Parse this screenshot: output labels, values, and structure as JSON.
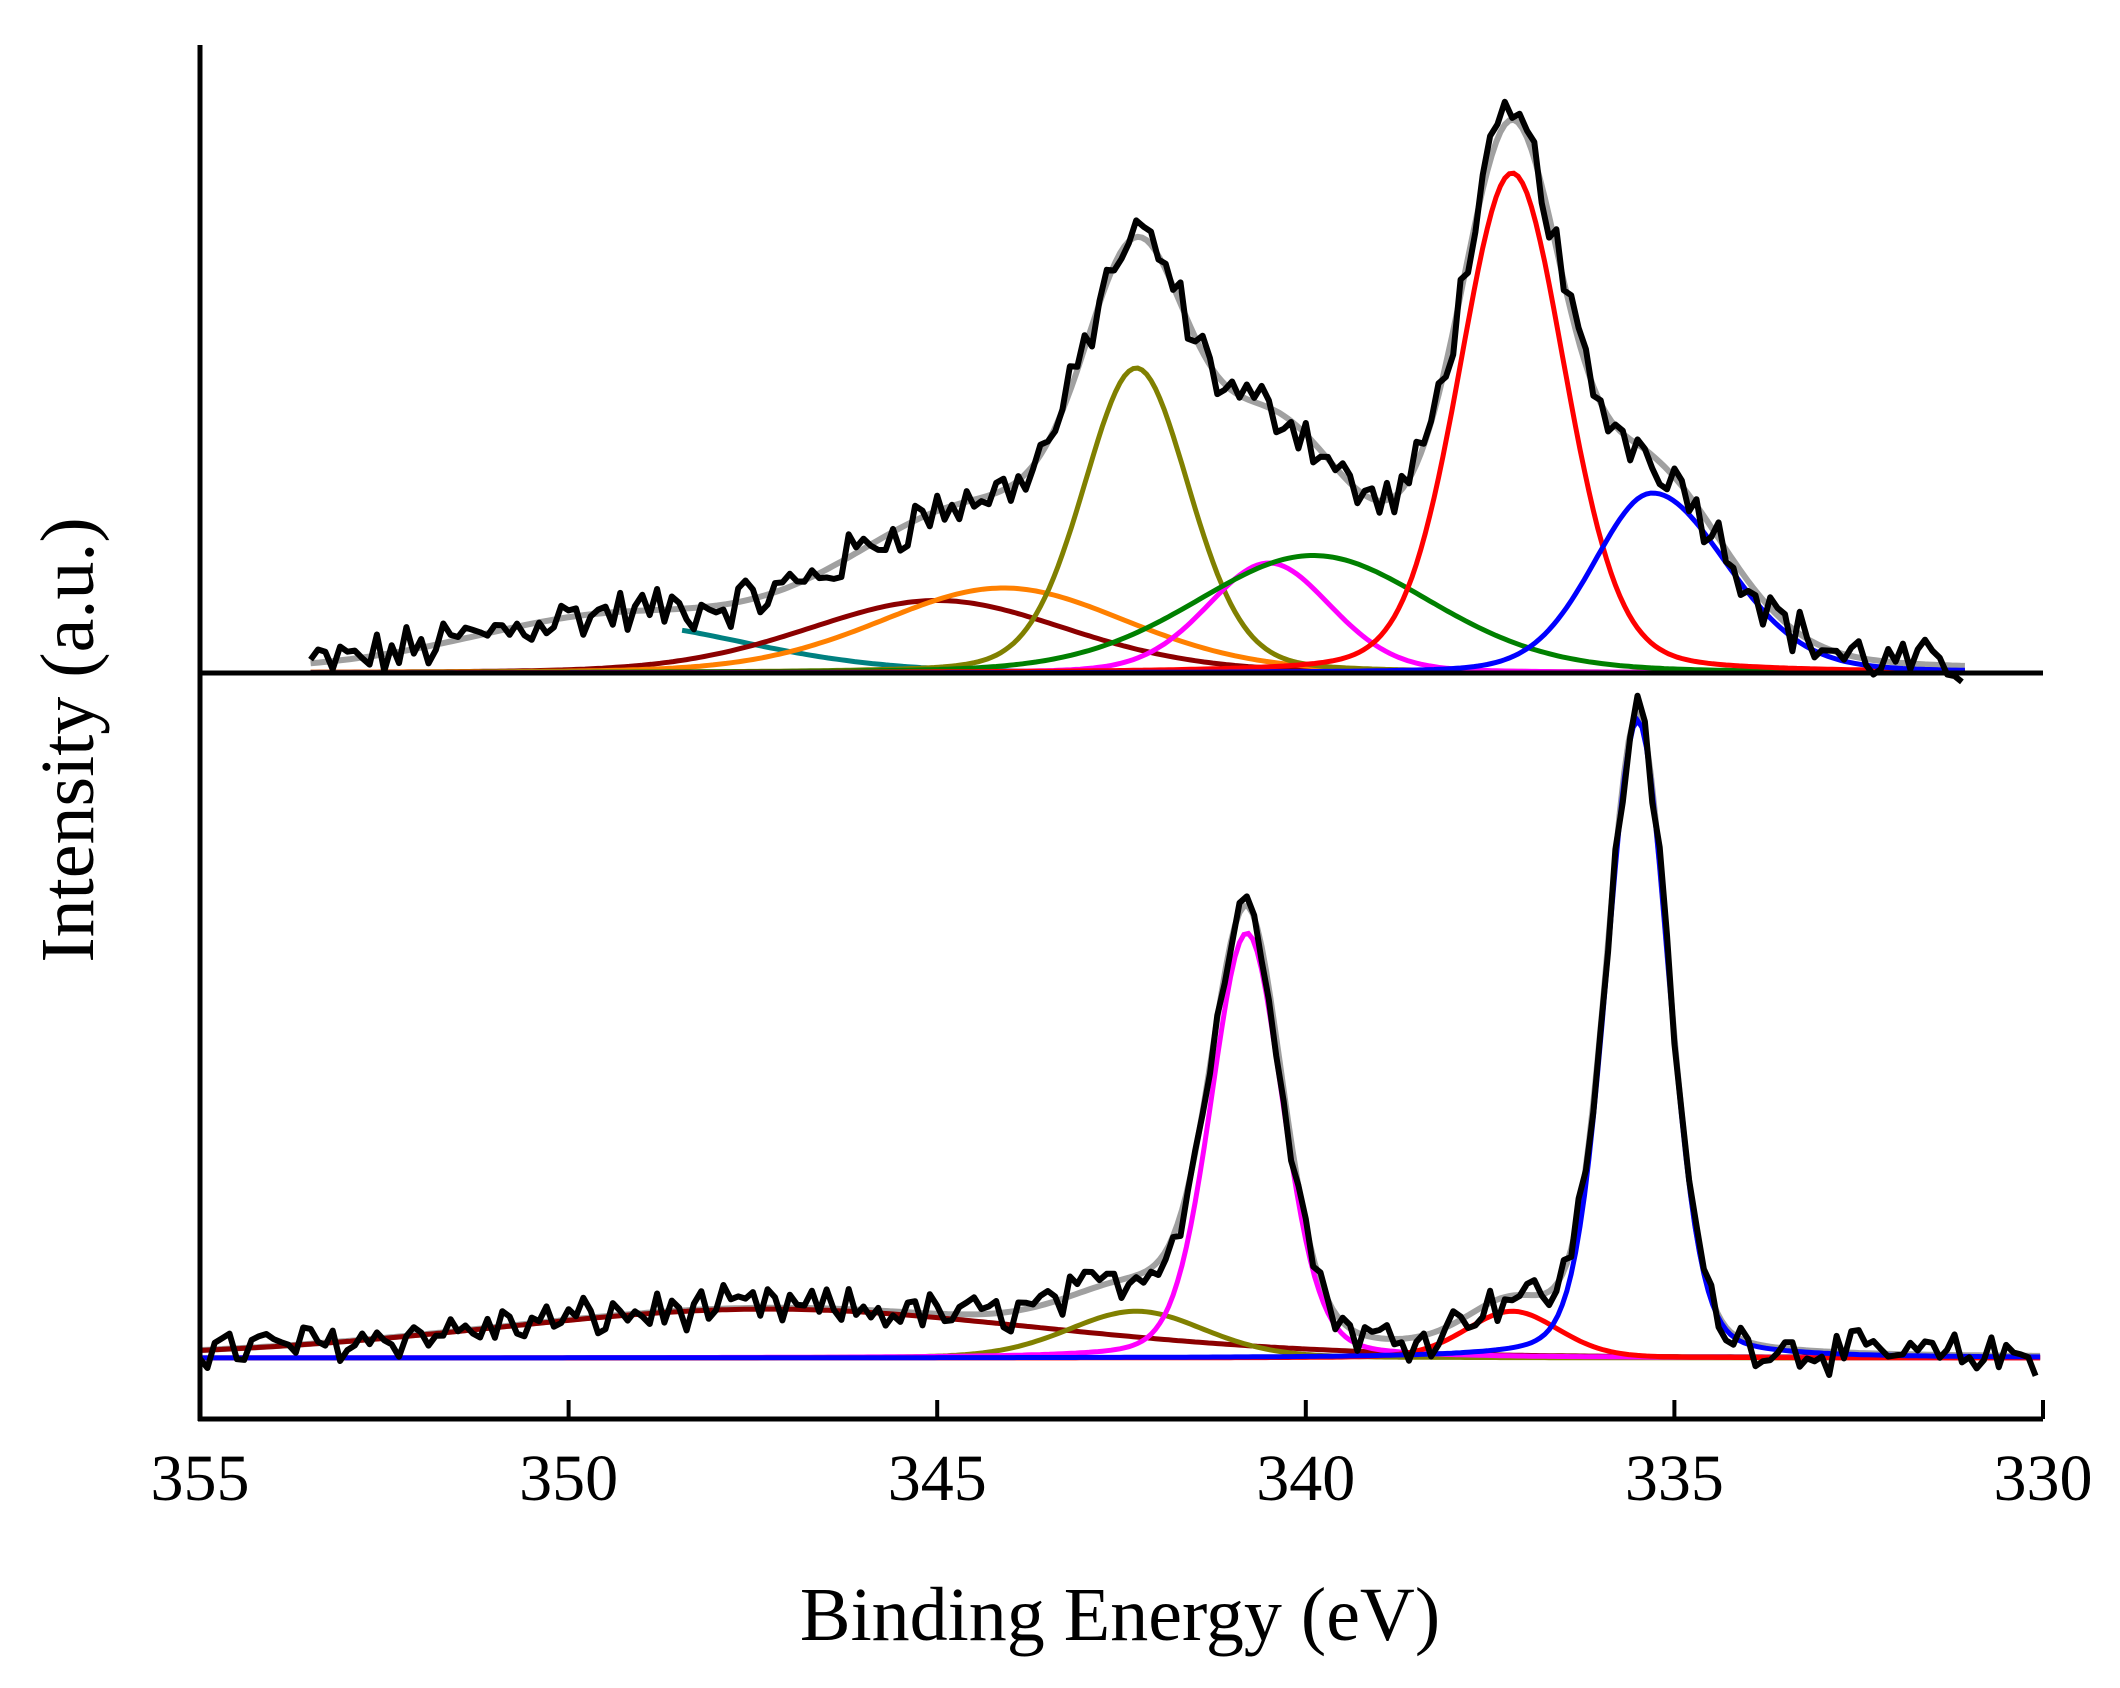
{
  "chart_data": {
    "type": "line",
    "title": "",
    "xlabel": "Binding Energy (eV)",
    "ylabel": "Intensity (a.u.)",
    "xlim": [
      355,
      330
    ],
    "x_reversed": true,
    "xticks": [
      355,
      350,
      345,
      340,
      335,
      330
    ],
    "xtick_labels": [
      "355",
      "350",
      "345",
      "340",
      "335",
      "330"
    ],
    "grid": false,
    "legend": null,
    "colors": {
      "raw": "#000000",
      "envelope": "#a0a0a0",
      "red": "#ff0000",
      "blue": "#0000ff",
      "magenta": "#ff00ff",
      "olive": "#808000",
      "green": "#008000",
      "orange": "#ff8000",
      "darkred": "#8b0000",
      "teal": "#008080"
    },
    "panels": [
      {
        "name": "top",
        "baseline": 0,
        "x_range": [
          353.5,
          331
        ],
        "components": [
          {
            "name": "teal",
            "color": "teal",
            "center": 349.5,
            "height": 0.1,
            "fwhm": 4.5,
            "start": 348.5
          },
          {
            "name": "darkred",
            "color": "darkred",
            "center": 345.0,
            "height": 0.145,
            "fwhm": 4.2
          },
          {
            "name": "orange",
            "color": "orange",
            "center": 344.1,
            "height": 0.17,
            "fwhm": 4.0
          },
          {
            "name": "olive",
            "color": "olive",
            "center": 342.3,
            "height": 0.61,
            "fwhm": 1.7
          },
          {
            "name": "magenta",
            "color": "magenta",
            "center": 340.5,
            "height": 0.22,
            "fwhm": 2.0
          },
          {
            "name": "green",
            "color": "green",
            "center": 339.9,
            "height": 0.235,
            "fwhm": 3.8
          },
          {
            "name": "red",
            "color": "red",
            "center": 337.2,
            "height": 1.0,
            "fwhm": 1.7
          },
          {
            "name": "blue",
            "color": "blue",
            "center": 335.3,
            "height": 0.36,
            "fwhm": 1.9,
            "tail_right": 2.4
          }
        ]
      },
      {
        "name": "bottom",
        "baseline": 0.04,
        "x_range": [
          355,
          330
        ],
        "components": [
          {
            "name": "darkred",
            "color": "darkred",
            "center": 347.3,
            "height": 0.115,
            "fwhm": 9.0
          },
          {
            "name": "olive",
            "color": "olive",
            "center": 342.3,
            "height": 0.11,
            "fwhm": 2.2
          },
          {
            "name": "magenta",
            "color": "magenta",
            "center": 340.8,
            "height": 1.0,
            "fwhm": 1.15
          },
          {
            "name": "red",
            "color": "red",
            "center": 337.2,
            "height": 0.11,
            "fwhm": 1.5
          },
          {
            "name": "blue",
            "color": "blue",
            "center": 335.5,
            "height": 1.5,
            "fwhm": 1.0
          }
        ]
      }
    ]
  }
}
